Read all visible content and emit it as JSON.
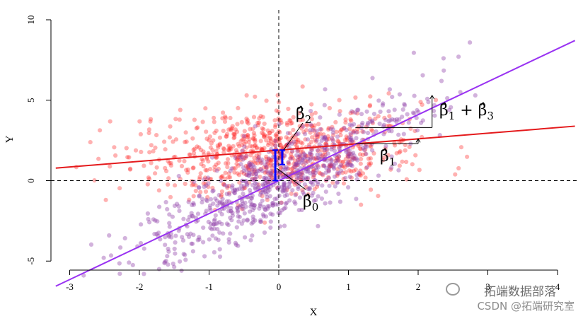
{
  "chart_data": {
    "type": "scatter",
    "xlabel": "X",
    "ylabel": "Y",
    "xlim": [
      -3.2,
      4.0
    ],
    "ylim": [
      -5.6,
      10.0
    ],
    "x_ticks": [
      -3,
      -2,
      -1,
      0,
      1,
      2,
      3,
      4
    ],
    "y_ticks": [
      -5,
      0,
      5,
      10
    ],
    "grid": false,
    "reference_lines": [
      {
        "orientation": "vertical",
        "value": 0,
        "style": "dashed",
        "color": "#000000"
      },
      {
        "orientation": "horizontal",
        "value": 0,
        "style": "dashed",
        "color": "#000000"
      }
    ],
    "series": [
      {
        "color": "#ff2020",
        "marker": "circle",
        "opacity": 0.35,
        "cloud": {
          "x_center": 0.0,
          "x_spread": 1.0,
          "x_min": -3.0,
          "x_max": 2.8,
          "intercept": 1.9,
          "slope": 0.35,
          "noise": 1.35
        },
        "fit_line": {
          "intercept": 1.9,
          "slope": 0.35,
          "color": "#e41a1c"
        }
      },
      {
        "color": "#8e3fa8",
        "marker": "circle",
        "opacity": 0.4,
        "cloud": {
          "x_center": 0.0,
          "x_spread": 1.0,
          "x_min": -2.9,
          "x_max": 3.4,
          "intercept": 0.0,
          "slope": 2.05,
          "noise": 1.3
        },
        "fit_line": {
          "intercept": 0.0,
          "slope": 2.05,
          "color": "#9932f2"
        }
      }
    ],
    "annotations": [
      {
        "id": "b0",
        "text": "β̂",
        "sub": "0",
        "bar_x": -0.05,
        "bar_y": [
          0,
          1.9
        ],
        "color": "#0000ff"
      },
      {
        "id": "b2",
        "text": "β̂",
        "sub": "2",
        "bar_x": 0.05,
        "bar_y": [
          1.0,
          1.9
        ],
        "color": "#0000ff"
      },
      {
        "id": "b1",
        "text": "β̂",
        "sub": "1",
        "arrow_from": [
          1.1,
          2.3
        ],
        "arrow_to": [
          2.0,
          2.6
        ]
      },
      {
        "id": "b13",
        "text": "β̂",
        "sub": "1",
        "plus": "+",
        "text2": "β̂",
        "sub2": "3",
        "arrow_from": [
          1.1,
          3.3
        ],
        "arrow_to": [
          2.2,
          5.3
        ]
      }
    ]
  },
  "watermark": {
    "line1": "拓端数据部落",
    "line2": "CSDN @拓端研究室"
  }
}
